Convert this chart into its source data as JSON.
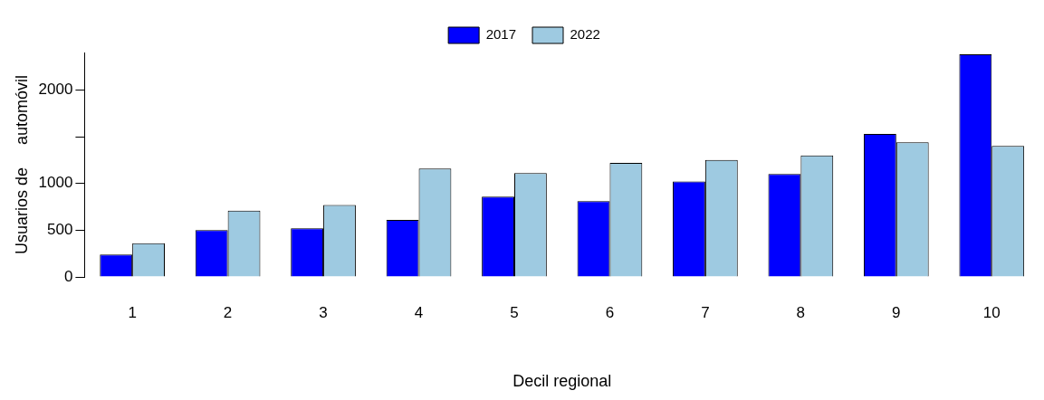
{
  "chart_data": {
    "type": "bar",
    "xlabel": "Decil regional",
    "ylabel": "Usuarios de     automóvil",
    "categories": [
      "1",
      "2",
      "3",
      "4",
      "5",
      "6",
      "7",
      "8",
      "9",
      "10"
    ],
    "series": [
      {
        "name": "2017",
        "color": "#0000ff",
        "values": [
          240,
          500,
          520,
          610,
          860,
          810,
          1020,
          1100,
          1530,
          2380
        ]
      },
      {
        "name": "2022",
        "color": "#9ecae1",
        "values": [
          360,
          710,
          770,
          1160,
          1110,
          1220,
          1250,
          1300,
          1440,
          1400
        ]
      }
    ],
    "ylim": [
      0,
      2400
    ],
    "yticks": [
      0,
      500,
      1000,
      {
        "value": 1500,
        "label": null
      },
      2000
    ],
    "grid": false,
    "legend": "top"
  }
}
